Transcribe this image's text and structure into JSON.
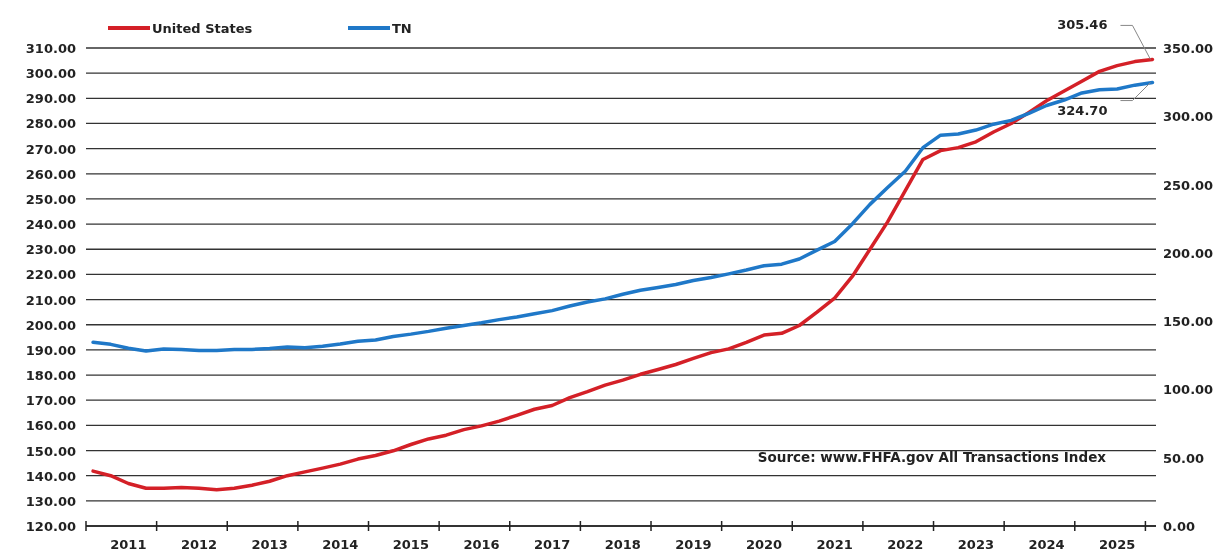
{
  "chart_data": {
    "type": "line",
    "legend": "top left",
    "grid": "y",
    "line_style": "solid",
    "marker": "none",
    "annotations": [
      "Source: www.FHFA.gov All Transactions Index"
    ],
    "x": [
      2010.5,
      2010.75,
      2011,
      2011.25,
      2011.5,
      2011.75,
      2012,
      2012.25,
      2012.5,
      2012.75,
      2013,
      2013.25,
      2013.5,
      2013.75,
      2014,
      2014.25,
      2014.5,
      2014.75,
      2015,
      2015.25,
      2015.5,
      2015.75,
      2016,
      2016.25,
      2016.5,
      2016.75,
      2017,
      2017.25,
      2017.5,
      2017.75,
      2018,
      2018.25,
      2018.5,
      2018.75,
      2019,
      2019.25,
      2019.5,
      2019.75,
      2020,
      2020.25,
      2020.5,
      2020.75,
      2021,
      2021.25,
      2021.5,
      2021.75,
      2022,
      2022.25,
      2022.5,
      2022.75,
      2023,
      2023.25,
      2023.5,
      2023.75,
      2024,
      2024.25,
      2024.5,
      2024.75,
      2025,
      2025.25,
      2025.5
    ],
    "xlim": [
      2010.4,
      2025.55
    ],
    "xticks": [
      {
        "value": 2010.4,
        "label": null
      },
      {
        "value": 2011.4,
        "label": null
      },
      {
        "value": 2012.4,
        "label": null
      },
      {
        "value": 2013.4,
        "label": null
      },
      {
        "value": 2014.4,
        "label": null
      },
      {
        "value": 2015.4,
        "label": null
      },
      {
        "value": 2016.4,
        "label": null
      },
      {
        "value": 2017.4,
        "label": null
      },
      {
        "value": 2018.4,
        "label": null
      },
      {
        "value": 2019.4,
        "label": null
      },
      {
        "value": 2020.4,
        "label": null
      },
      {
        "value": 2021.4,
        "label": null
      },
      {
        "value": 2022.4,
        "label": null
      },
      {
        "value": 2023.4,
        "label": null
      },
      {
        "value": 2024.4,
        "label": null
      },
      {
        "value": 2025.4,
        "label": null
      },
      2011,
      2012,
      2013,
      2014,
      2015,
      2016,
      2017,
      2018,
      2019,
      2020,
      2021,
      2022,
      2023,
      2024,
      2025
    ],
    "ylim": [
      120,
      310
    ],
    "yticks": [
      {
        "value": 120,
        "label": "120.00"
      },
      {
        "value": 130,
        "label": "130.00"
      },
      {
        "value": 140,
        "label": "140.00"
      },
      {
        "value": 150,
        "label": "150.00"
      },
      {
        "value": 160,
        "label": "160.00"
      },
      {
        "value": 170,
        "label": "170.00"
      },
      {
        "value": 180,
        "label": "180.00"
      },
      {
        "value": 190,
        "label": "190.00"
      },
      {
        "value": 200,
        "label": "200.00"
      },
      {
        "value": 210,
        "label": "210.00"
      },
      {
        "value": 220,
        "label": "220.00"
      },
      {
        "value": 230,
        "label": "230.00"
      },
      {
        "value": 240,
        "label": "240.00"
      },
      {
        "value": 250,
        "label": "250.00"
      },
      {
        "value": 260,
        "label": "260.00"
      },
      {
        "value": 270,
        "label": "270.00"
      },
      {
        "value": 280,
        "label": "280.00"
      },
      {
        "value": 290,
        "label": "290.00"
      },
      {
        "value": 300,
        "label": "300.00"
      },
      {
        "value": 310,
        "label": "310.00"
      }
    ],
    "y2lim": [
      0,
      350
    ],
    "y2ticks": [
      {
        "value": 0,
        "label": "0.00"
      },
      {
        "value": 50,
        "label": "50.00"
      },
      {
        "value": 100,
        "label": "100.00"
      },
      {
        "value": 150,
        "label": "150.00"
      },
      {
        "value": 200,
        "label": "200.00"
      },
      {
        "value": 250,
        "label": "250.00"
      },
      {
        "value": 300,
        "label": "300.00"
      },
      {
        "value": 350,
        "label": "350.00"
      }
    ],
    "series": [
      {
        "name": "United States",
        "color": "#d42027",
        "values": [
          141.8,
          140,
          136.9,
          135,
          135,
          135.3,
          135,
          134.4,
          135,
          136.2,
          137.8,
          140,
          141.5,
          143,
          144.6,
          146.6,
          148,
          149.9,
          152.4,
          154.6,
          156.1,
          158.3,
          159.8,
          161.7,
          164,
          166.4,
          167.9,
          171,
          173.4,
          176,
          178,
          180.3,
          182.2,
          184.2,
          186.6,
          188.9,
          190.4,
          193,
          195.9,
          196.6,
          199.7,
          205,
          210.6,
          219.2,
          230,
          240.9,
          253.3,
          265.7,
          269.2,
          270.4,
          272.7,
          276.6,
          280,
          284.4,
          289,
          292.9,
          296.8,
          300.7,
          303,
          304.6,
          305.46
        ],
        "value_labels": [
          null,
          null,
          null,
          null,
          null,
          null,
          null,
          null,
          null,
          null,
          null,
          null,
          null,
          null,
          null,
          null,
          null,
          null,
          null,
          null,
          null,
          null,
          null,
          null,
          null,
          null,
          null,
          null,
          null,
          null,
          null,
          null,
          null,
          null,
          null,
          null,
          null,
          null,
          null,
          null,
          null,
          null,
          null,
          null,
          null,
          null,
          null,
          null,
          null,
          null,
          null,
          null,
          null,
          null,
          null,
          null,
          null,
          null,
          null,
          null,
          "305.46"
        ]
      },
      {
        "name": "TN",
        "color": "#1f78c8",
        "axis": "y2",
        "values": [
          134.5,
          133,
          130.2,
          128.2,
          129.6,
          129.3,
          128.5,
          128.5,
          129.3,
          129.3,
          129.9,
          131,
          130.5,
          131.6,
          133.3,
          135.3,
          136.2,
          138.8,
          140.5,
          142.5,
          144.8,
          146.8,
          148.8,
          151.1,
          153.1,
          155.4,
          157.7,
          161.1,
          164,
          166.3,
          169.7,
          172.6,
          174.6,
          176.8,
          179.7,
          182,
          184.6,
          187.4,
          190.6,
          191.7,
          195.5,
          202,
          208.3,
          221.2,
          235.5,
          247.8,
          259.8,
          277,
          286.2,
          287,
          289.9,
          294.2,
          297,
          302.2,
          307.9,
          311.9,
          317.1,
          319.4,
          320,
          322.8,
          324.7
        ],
        "value_labels": [
          null,
          null,
          null,
          null,
          null,
          null,
          null,
          null,
          null,
          null,
          null,
          null,
          null,
          null,
          null,
          null,
          null,
          null,
          null,
          null,
          null,
          null,
          null,
          null,
          null,
          null,
          null,
          null,
          null,
          null,
          null,
          null,
          null,
          null,
          null,
          null,
          null,
          null,
          null,
          null,
          null,
          null,
          null,
          null,
          null,
          null,
          null,
          null,
          null,
          null,
          null,
          null,
          null,
          null,
          null,
          null,
          null,
          null,
          null,
          null,
          "324.70"
        ]
      }
    ]
  }
}
